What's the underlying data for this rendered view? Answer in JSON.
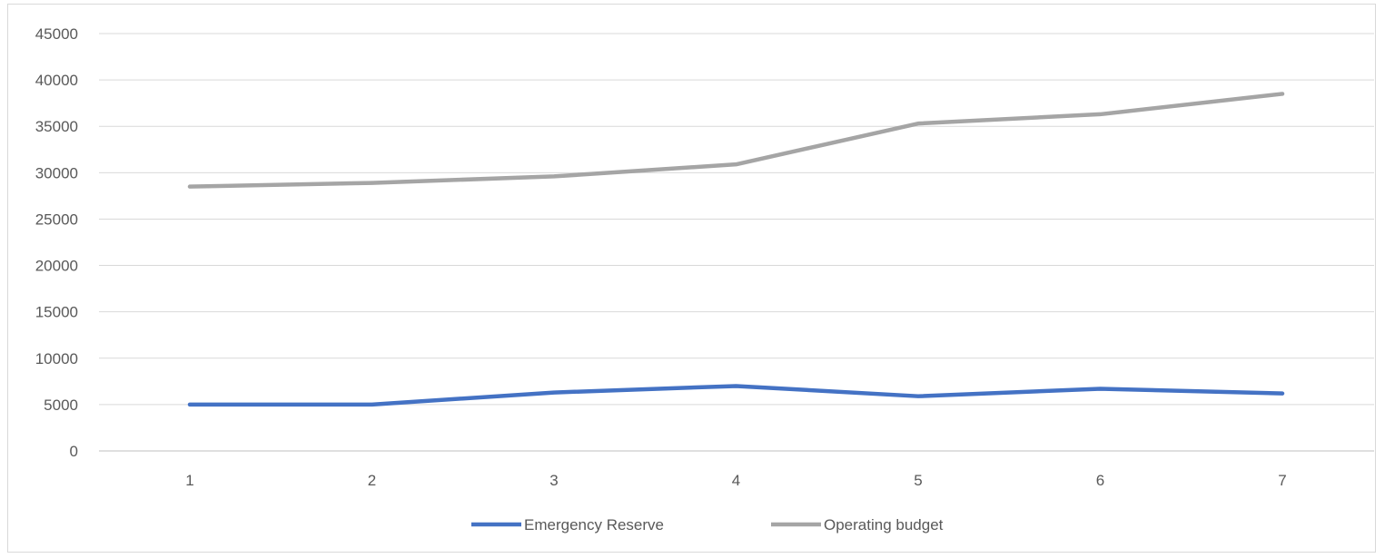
{
  "chart_data": {
    "type": "line",
    "title": "",
    "xlabel": "",
    "ylabel": "",
    "categories": [
      "1",
      "2",
      "3",
      "4",
      "5",
      "6",
      "7"
    ],
    "ylim": [
      0,
      45000
    ],
    "yticks": [
      0,
      5000,
      10000,
      15000,
      20000,
      25000,
      30000,
      35000,
      40000,
      45000
    ],
    "grid": true,
    "legend_position": "bottom",
    "series": [
      {
        "name": "Emergency Reserve",
        "color": "#4472c4",
        "values": [
          5000,
          5000,
          6300,
          7000,
          5900,
          6700,
          6200
        ]
      },
      {
        "name": "Operating budget",
        "color": "#a5a5a5",
        "values": [
          28500,
          28900,
          29600,
          30900,
          35300,
          36300,
          38500
        ]
      }
    ]
  }
}
